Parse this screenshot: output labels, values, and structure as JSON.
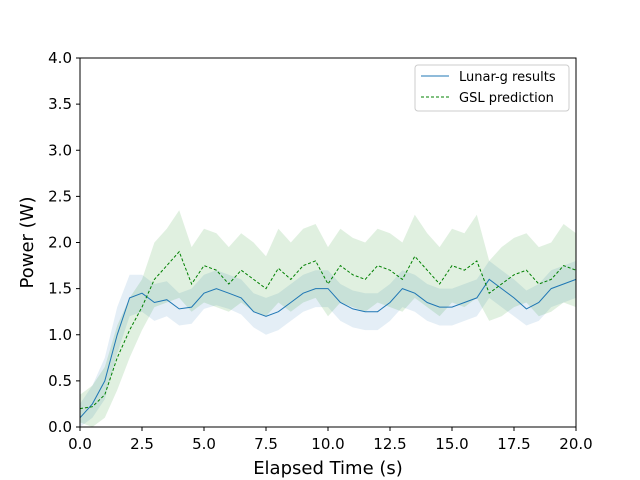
{
  "chart_data": {
    "type": "line",
    "xlabel": "Elapsed Time (s)",
    "ylabel": "Power (W)",
    "xlim": [
      0,
      20
    ],
    "ylim": [
      0,
      4
    ],
    "x_ticks": [
      0.0,
      2.5,
      5.0,
      7.5,
      10.0,
      12.5,
      15.0,
      17.5,
      20.0
    ],
    "x_tick_labels": [
      "0.0",
      "2.5",
      "5.0",
      "7.5",
      "10.0",
      "12.5",
      "15.0",
      "17.5",
      "20.0"
    ],
    "y_ticks": [
      0.0,
      0.5,
      1.0,
      1.5,
      2.0,
      2.5,
      3.0,
      3.5,
      4.0
    ],
    "y_tick_labels": [
      "0.0",
      "0.5",
      "1.0",
      "1.5",
      "2.0",
      "2.5",
      "3.0",
      "3.5",
      "4.0"
    ],
    "grid": false,
    "legend_position": "top-right",
    "x": [
      0,
      0.5,
      1.0,
      1.5,
      2.0,
      2.5,
      3.0,
      3.5,
      4.0,
      4.5,
      5.0,
      5.5,
      6.0,
      6.5,
      7.0,
      7.5,
      8.0,
      8.5,
      9.0,
      9.5,
      10.0,
      10.5,
      11.0,
      11.5,
      12.0,
      12.5,
      13.0,
      13.5,
      14.0,
      14.5,
      15.0,
      15.5,
      16.0,
      16.5,
      17.0,
      17.5,
      18.0,
      18.5,
      19.0,
      19.5,
      20.0
    ],
    "series": [
      {
        "name": "Lunar-g results",
        "color": "#1f77b4",
        "line_style": "solid",
        "values": [
          0.1,
          0.25,
          0.5,
          1.0,
          1.4,
          1.45,
          1.35,
          1.38,
          1.28,
          1.3,
          1.45,
          1.5,
          1.45,
          1.4,
          1.25,
          1.2,
          1.25,
          1.35,
          1.45,
          1.5,
          1.5,
          1.35,
          1.28,
          1.25,
          1.25,
          1.35,
          1.5,
          1.45,
          1.35,
          1.3,
          1.3,
          1.35,
          1.4,
          1.6,
          1.5,
          1.4,
          1.28,
          1.35,
          1.5,
          1.55,
          1.6
        ],
        "band_lower": [
          0.0,
          0.1,
          0.3,
          0.8,
          1.2,
          1.25,
          1.15,
          1.2,
          1.1,
          1.12,
          1.28,
          1.32,
          1.28,
          1.22,
          1.08,
          1.0,
          1.05,
          1.15,
          1.25,
          1.3,
          1.3,
          1.15,
          1.08,
          1.05,
          1.05,
          1.15,
          1.3,
          1.25,
          1.15,
          1.1,
          1.1,
          1.15,
          1.2,
          1.4,
          1.3,
          1.2,
          1.1,
          1.15,
          1.3,
          1.35,
          1.4
        ],
        "band_upper": [
          0.25,
          0.45,
          0.75,
          1.3,
          1.65,
          1.65,
          1.55,
          1.58,
          1.45,
          1.5,
          1.65,
          1.7,
          1.65,
          1.6,
          1.45,
          1.4,
          1.45,
          1.55,
          1.65,
          1.7,
          1.7,
          1.55,
          1.48,
          1.45,
          1.45,
          1.55,
          1.7,
          1.65,
          1.55,
          1.5,
          1.5,
          1.55,
          1.6,
          1.8,
          1.7,
          1.6,
          1.48,
          1.55,
          1.7,
          1.75,
          1.8
        ]
      },
      {
        "name": "GSL prediction",
        "color": "#008000",
        "line_style": "dashed",
        "values": [
          0.2,
          0.22,
          0.35,
          0.75,
          1.05,
          1.3,
          1.6,
          1.75,
          1.9,
          1.55,
          1.75,
          1.7,
          1.55,
          1.7,
          1.6,
          1.5,
          1.72,
          1.6,
          1.75,
          1.8,
          1.55,
          1.75,
          1.65,
          1.6,
          1.75,
          1.7,
          1.6,
          1.85,
          1.7,
          1.55,
          1.75,
          1.7,
          1.8,
          1.45,
          1.55,
          1.65,
          1.7,
          1.55,
          1.6,
          1.75,
          1.7
        ],
        "band_lower": [
          0.05,
          0.0,
          0.1,
          0.4,
          0.75,
          1.05,
          1.3,
          1.35,
          1.4,
          1.25,
          1.35,
          1.3,
          1.25,
          1.35,
          1.25,
          1.2,
          1.35,
          1.25,
          1.35,
          1.4,
          1.2,
          1.35,
          1.3,
          1.25,
          1.35,
          1.3,
          1.25,
          1.4,
          1.3,
          1.2,
          1.35,
          1.3,
          1.4,
          1.15,
          1.2,
          1.3,
          1.35,
          1.2,
          1.25,
          1.35,
          1.3
        ],
        "band_upper": [
          0.35,
          0.45,
          0.65,
          1.1,
          1.4,
          1.6,
          2.0,
          2.15,
          2.35,
          1.95,
          2.15,
          2.1,
          1.95,
          2.1,
          2.0,
          1.85,
          2.15,
          2.0,
          2.15,
          2.2,
          1.95,
          2.15,
          2.05,
          2.0,
          2.15,
          2.1,
          2.0,
          2.3,
          2.1,
          1.95,
          2.15,
          2.1,
          2.3,
          1.8,
          1.95,
          2.05,
          2.1,
          1.95,
          2.0,
          2.2,
          2.1
        ]
      }
    ]
  }
}
